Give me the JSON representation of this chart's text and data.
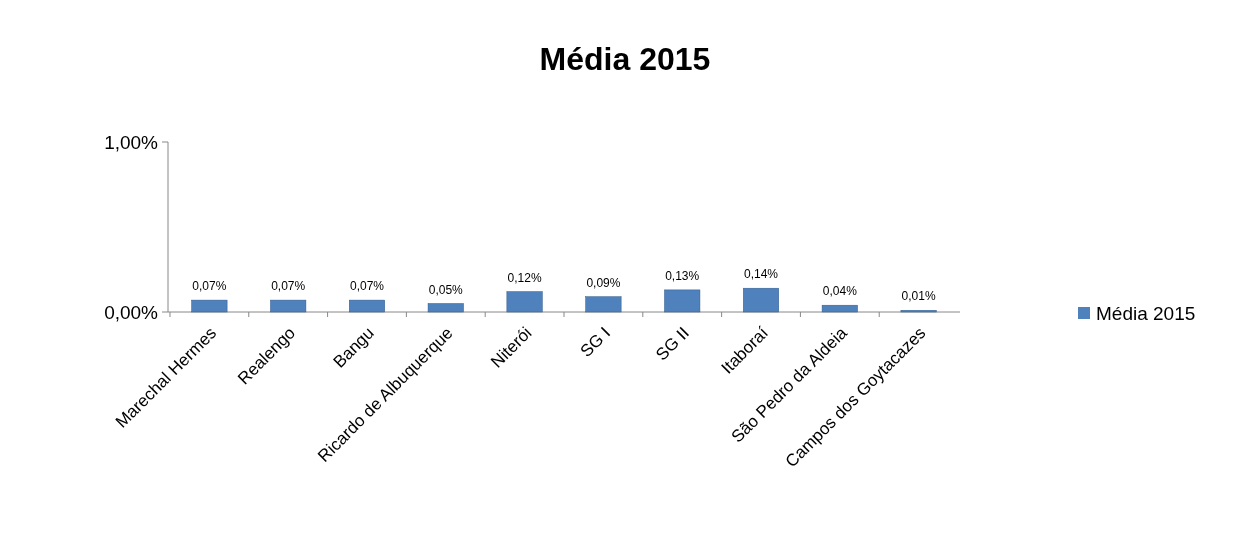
{
  "chart_data": {
    "type": "bar",
    "title": "Média 2015",
    "categories": [
      "Marechal Hermes",
      "Realengo",
      "Bangu",
      "Ricardo de Albuquerque",
      "Niterói",
      "SG I",
      "SG II",
      "Itaboraí",
      "São Pedro da Aldeia",
      "Campos dos Goytacazes"
    ],
    "series": [
      {
        "name": "Média 2015",
        "color": "#4f81bd",
        "values": [
          0.07,
          0.07,
          0.07,
          0.05,
          0.12,
          0.09,
          0.13,
          0.14,
          0.04,
          0.01
        ],
        "value_labels": [
          "0,07%",
          "0,07%",
          "0,07%",
          "0,05%",
          "0,12%",
          "0,09%",
          "0,13%",
          "0,14%",
          "0,04%",
          "0,01%"
        ]
      }
    ],
    "ylim": [
      0,
      1
    ],
    "yticks": [
      {
        "value": 0,
        "label": "0,00%"
      },
      {
        "value": 1,
        "label": "1,00%"
      }
    ],
    "grid": false,
    "legend": "right"
  }
}
